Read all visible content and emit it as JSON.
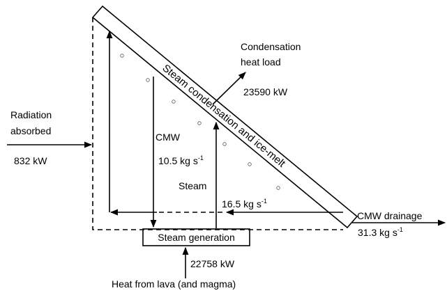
{
  "radiation": {
    "label_line1": "Radiation",
    "label_line2": "absorbed",
    "value": "832 kW"
  },
  "condensation": {
    "label_line1": "Condensation",
    "label_line2": "heat load",
    "value": "23590 kW"
  },
  "panel_label": "Steam condensation and ice-melt",
  "cmw": {
    "label": "CMW",
    "rate": {
      "text": "10.5 kg s",
      "sup": "-1"
    }
  },
  "steam": {
    "label": "Steam"
  },
  "recycle": {
    "rate": {
      "text": "16.5 kg s",
      "sup": "-1"
    }
  },
  "drainage": {
    "label": "CMW drainage",
    "rate": {
      "text": "31.3 kg s",
      "sup": "-1"
    }
  },
  "steam_generation": "Steam generation",
  "heat": {
    "value": "22758 kW",
    "label": "Heat from lava (and magma)"
  }
}
